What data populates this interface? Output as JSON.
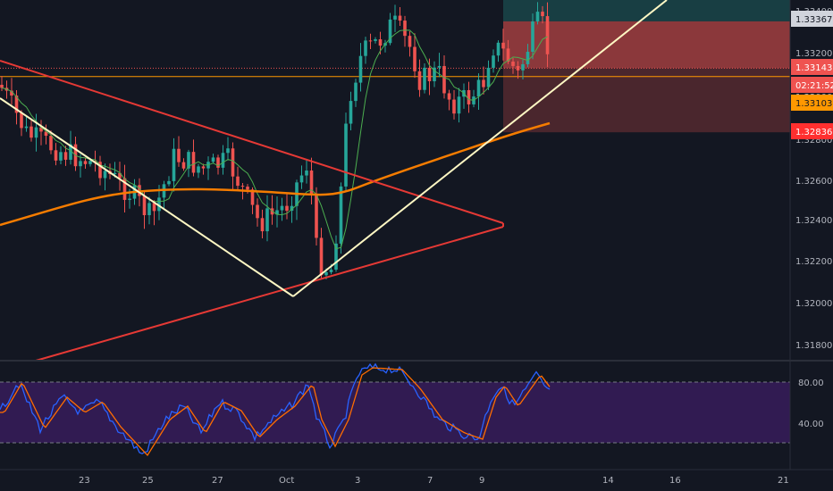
{
  "colors": {
    "background": "#131722",
    "up": "#26a69a",
    "down": "#ef5350",
    "ema": "#f57c00",
    "ma": "#4caf50",
    "trendline_white": "#fff8c4",
    "trendline_red": "#e53935",
    "hline_orange": "#ff9800",
    "stoch_k": "#2962ff",
    "stoch_d": "#ff6d00",
    "stoch_band": "#4a1f7a"
  },
  "price_axis": {
    "labels": [
      "1.33400",
      "1.33200",
      "1.33000",
      "1.32800",
      "1.32600",
      "1.32400",
      "1.32200",
      "1.32000",
      "1.31800"
    ],
    "tags": [
      {
        "text": "1.33367",
        "bg": "#d1d4dc",
        "fg": "#131722",
        "price": 1.33367
      },
      {
        "text": "1.33143",
        "bg": "#ef5350",
        "fg": "#ffffff",
        "price": 1.33143
      },
      {
        "text": "02:21:52",
        "bg": "#ef5350",
        "fg": "#ffffff",
        "price": 1.33068
      },
      {
        "text": "1.33103",
        "bg": "#ff9800",
        "fg": "#131722",
        "price": 1.33103
      },
      {
        "text": "1.32836",
        "bg": "#ff2f2f",
        "fg": "#ffffff",
        "price": 1.32836
      }
    ]
  },
  "stoch_axis": {
    "labels": [
      "80.00",
      "40.00"
    ]
  },
  "time_axis": {
    "labels": [
      "23",
      "25",
      "27",
      "Oct",
      "3",
      "7",
      "9",
      "14",
      "16",
      "21"
    ]
  },
  "chart_data": {
    "type": "candlestick",
    "symbol_panel": "price",
    "ylim": [
      1.317,
      1.3342
    ],
    "x_labels": [
      "23",
      "25",
      "27",
      "Oct",
      "3",
      "7",
      "9",
      "14",
      "16",
      "21"
    ],
    "current_price": 1.33143,
    "countdown": "02:21:52",
    "horizontal_level": 1.33103,
    "position": {
      "entry": 1.33143,
      "take_profit": 1.33367,
      "stop_loss": 1.32836
    },
    "oscillator": {
      "name": "Stochastic",
      "upper_band": 80,
      "lower_band": 20,
      "ylim": [
        0,
        100
      ]
    }
  }
}
